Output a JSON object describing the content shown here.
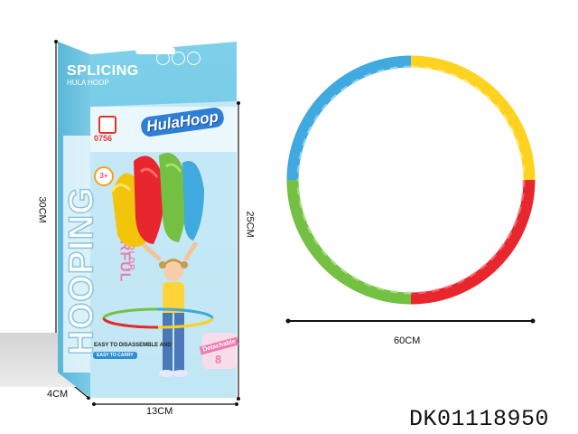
{
  "colors": {
    "box_blue": "#73cbe6",
    "box_light": "#dff3fa",
    "blue": "#3fa9e0",
    "yellow": "#ffd21f",
    "red": "#e8262d",
    "green": "#74c043",
    "pink": "#f07bb0"
  },
  "box": {
    "title_line1": "SPLICING",
    "title_line2": "HULA HOOP",
    "number_badge": "0756",
    "brand_logo": "HulaHoop",
    "age": "3+",
    "side_word_big": "HOOPING",
    "side_word_1": "COLORFUL",
    "side_word_2": "MULTICOLOR",
    "feature_1": "EASY TO DISASSEMBLE AND",
    "feature_2": "EASY TO CARRY",
    "sticker_text": "Detachable",
    "sticker_number": "8",
    "icons": [
      "gymnastics-icon",
      "dance-icon",
      "fitness-icon"
    ]
  },
  "dimensions": {
    "box_height": "30CM",
    "box_depth": "4CM",
    "box_width": "13CM",
    "front_height": "25CM",
    "hoop_diameter": "60CM"
  },
  "product_code": "DK01118950"
}
